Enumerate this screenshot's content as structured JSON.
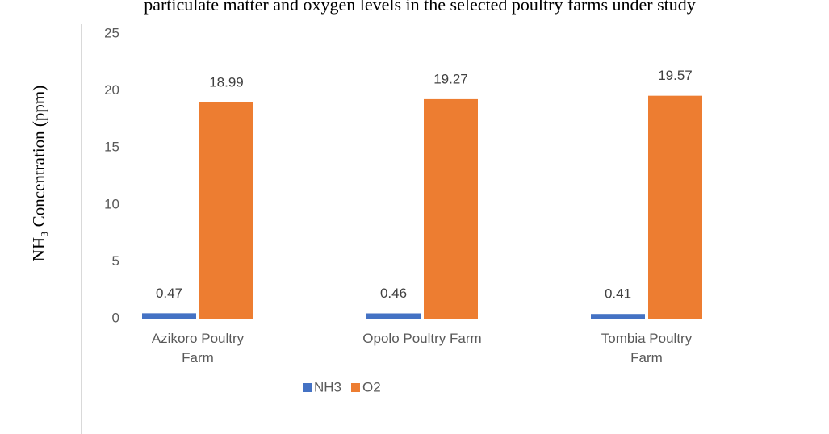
{
  "chart_data": {
    "type": "bar",
    "title": "particulate matter and oxygen levels in the selected poultry farms under study",
    "y_label": "NH₃ Concentration (ppm)",
    "categories": [
      "Azikoro Poultry Farm",
      "Opolo Poultry Farm",
      "Tombia Poultry Farm"
    ],
    "series": [
      {
        "name": "NH3",
        "color": "#4472c4",
        "values": [
          0.47,
          0.46,
          0.41
        ]
      },
      {
        "name": "O2",
        "color": "#ed7d31",
        "values": [
          18.99,
          19.27,
          19.57
        ]
      }
    ],
    "ylim": [
      0,
      25
    ],
    "yticks": [
      0,
      5,
      10,
      15,
      20,
      25
    ],
    "grid": false,
    "legend": "bottom"
  }
}
